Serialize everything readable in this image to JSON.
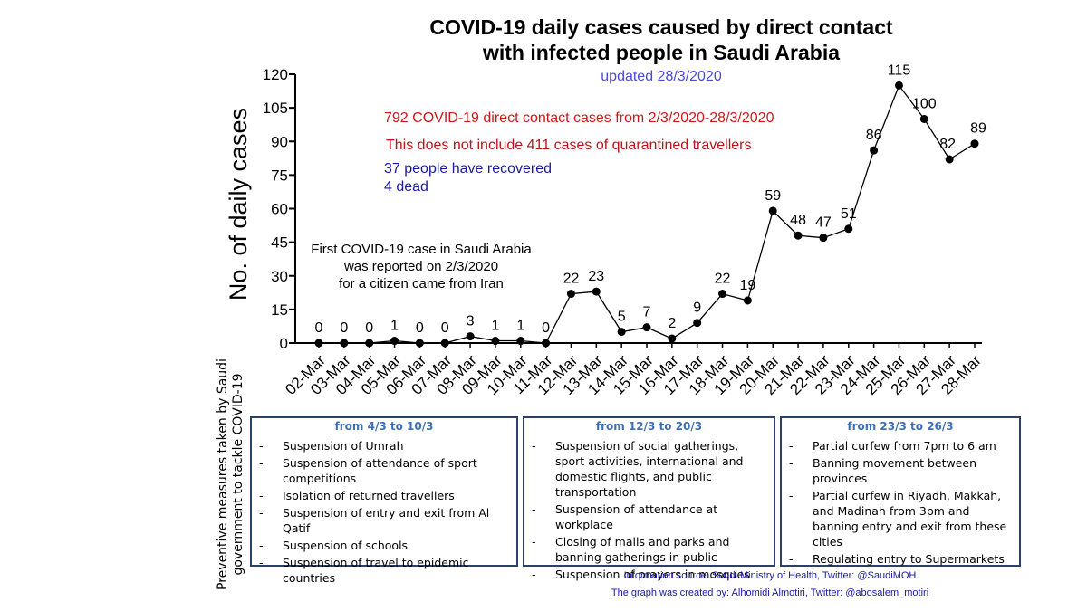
{
  "chart_data": {
    "type": "line",
    "title_line1": "COVID-19 daily cases caused by direct contact",
    "title_line2": "with infected people in Saudi Arabia",
    "subtitle": "updated 28/3/2020",
    "ylabel": "No. of daily cases",
    "xlabel": "",
    "ylim": [
      0,
      120
    ],
    "yticks": [
      0,
      15,
      30,
      45,
      60,
      75,
      90,
      105,
      120
    ],
    "categories": [
      "02-Mar",
      "03-Mar",
      "04-Mar",
      "05-Mar",
      "06-Mar",
      "07-Mar",
      "08-Mar",
      "09-Mar",
      "10-Mar",
      "11-Mar",
      "12-Mar",
      "13-Mar",
      "14-Mar",
      "15-Mar",
      "16-Mar",
      "17-Mar",
      "18-Mar",
      "19-Mar",
      "20-Mar",
      "21-Mar",
      "22-Mar",
      "23-Mar",
      "24-Mar",
      "25-Mar",
      "26-Mar",
      "27-Mar",
      "28-Mar"
    ],
    "values": [
      0,
      0,
      0,
      1,
      0,
      0,
      3,
      1,
      1,
      0,
      22,
      23,
      5,
      7,
      2,
      9,
      22,
      19,
      59,
      48,
      47,
      51,
      86,
      115,
      100,
      82,
      89
    ],
    "grid": false,
    "annotations": {
      "total": "792 COVID-19 direct contact cases from 2/3/2020-28/3/2020",
      "excluded": "This does not include 411 cases of quarantined travellers",
      "recovered": "37 people have recovered",
      "dead": "4  dead",
      "first_case": [
        "First COVID-19 case in Saudi Arabia",
        "was reported on 2/3/2020",
        "for a citizen came from Iran"
      ]
    }
  },
  "measures": {
    "label_line1": "Preventive measures taken by Saudi",
    "label_line2": "government to tackle COVID-19",
    "boxes": [
      {
        "heading": "from 4/3 to 10/3",
        "items": [
          "Suspension of Umrah",
          "Suspension of attendance of sport competitions",
          "Isolation of returned travellers",
          "Suspension of entry and exit from Al Qatif",
          "Suspension of schools",
          "Suspension of travel to epidemic countries"
        ]
      },
      {
        "heading": "from 12/3 to 20/3",
        "items": [
          "Suspension of social gatherings, sport activities, international and domestic flights, and public transportation",
          "Suspension of attendance at workplace",
          "Closing of malls and parks and banning gatherings in public",
          "Suspension of prayers in mosques"
        ]
      },
      {
        "heading": "from 23/3 to 26/3",
        "items": [
          "Partial curfew from 7pm to 6 am",
          "Banning movement between provinces",
          "Partial curfew in Riyadh, Makkah, and Madinah from 3pm and banning entry and exit from these cities",
          "Regulating entry to Supermarkets"
        ]
      }
    ]
  },
  "footer": {
    "source": "Information source:  Saudi Ministry of Health, Twitter: @SaudiMOH",
    "credit": "The graph was created by: Alhomidi Almotiri, Twitter: @abosalem_motiri"
  },
  "colors": {
    "line": "#000000",
    "red_note": "#d01818",
    "blue_note": "#1a1aa0",
    "updated": "#4a4adf",
    "box_border": "#2d3f6b",
    "box_heading": "#3e6fb5"
  }
}
